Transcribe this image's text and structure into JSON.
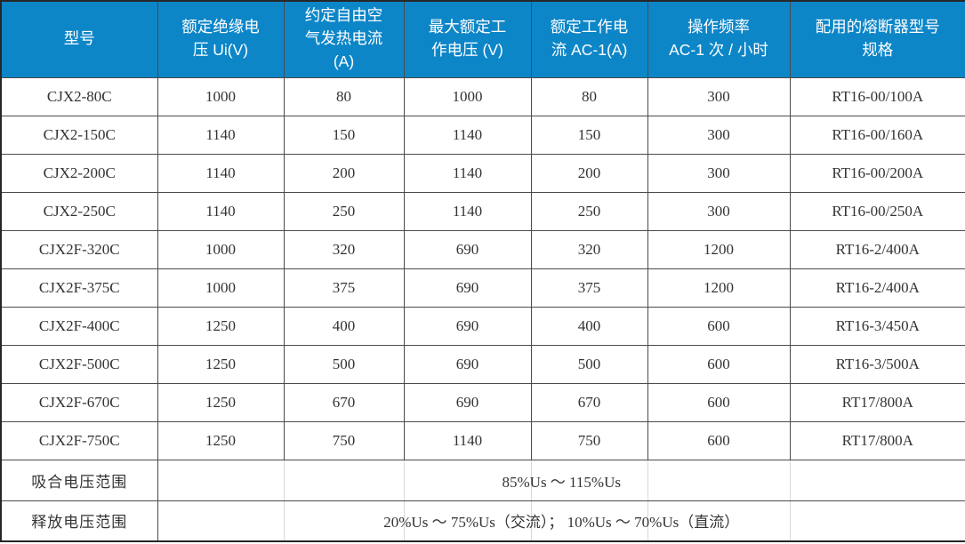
{
  "table": {
    "columns": [
      "型号",
      "额定绝缘电\n压 Ui(V)",
      "约定自由空\n气发热电流\n(A)",
      "最大额定工\n作电压 (V)",
      "额定工作电\n流 AC-1(A)",
      "操作频率\nAC-1 次 / 小时",
      "配用的熔断器型号\n规格"
    ],
    "rows": [
      {
        "cells": [
          "CJX2-80C",
          "1000",
          "80",
          "1000",
          "80",
          "300",
          "RT16-00/100A"
        ]
      },
      {
        "cells": [
          "CJX2-150C",
          "1140",
          "150",
          "1140",
          "150",
          "300",
          "RT16-00/160A"
        ]
      },
      {
        "cells": [
          "CJX2-200C",
          "1140",
          "200",
          "1140",
          "200",
          "300",
          "RT16-00/200A"
        ]
      },
      {
        "cells": [
          "CJX2-250C",
          "1140",
          "250",
          "1140",
          "250",
          "300",
          "RT16-00/250A"
        ]
      },
      {
        "cells": [
          "CJX2F-320C",
          "1000",
          "320",
          "690",
          "320",
          "1200",
          "RT16-2/400A"
        ]
      },
      {
        "cells": [
          "CJX2F-375C",
          "1000",
          "375",
          "690",
          "375",
          "1200",
          "RT16-2/400A"
        ]
      },
      {
        "cells": [
          "CJX2F-400C",
          "1250",
          "400",
          "690",
          "400",
          "600",
          "RT16-3/450A"
        ]
      },
      {
        "cells": [
          "CJX2F-500C",
          "1250",
          "500",
          "690",
          "500",
          "600",
          "RT16-3/500A"
        ]
      },
      {
        "cells": [
          "CJX2F-670C",
          "1250",
          "670",
          "690",
          "670",
          "600",
          "RT17/800A"
        ]
      },
      {
        "cells": [
          "CJX2F-750C",
          "1250",
          "750",
          "1140",
          "750",
          "600",
          "RT17/800A"
        ]
      }
    ],
    "span_rows": [
      {
        "label": "吸合电压范围",
        "value": "85%Us ～ 115%Us"
      },
      {
        "label": "释放电压范围",
        "value": "20%Us ～ 75%Us（交流）； 10%Us ～ 70%Us（直流）"
      }
    ],
    "colors": {
      "header_bg": "#0d86c8",
      "header_text": "#ffffff",
      "body_text": "#333333",
      "grid_border": "#4a4a4a",
      "faint_gridline": "#d9d9d9"
    }
  }
}
